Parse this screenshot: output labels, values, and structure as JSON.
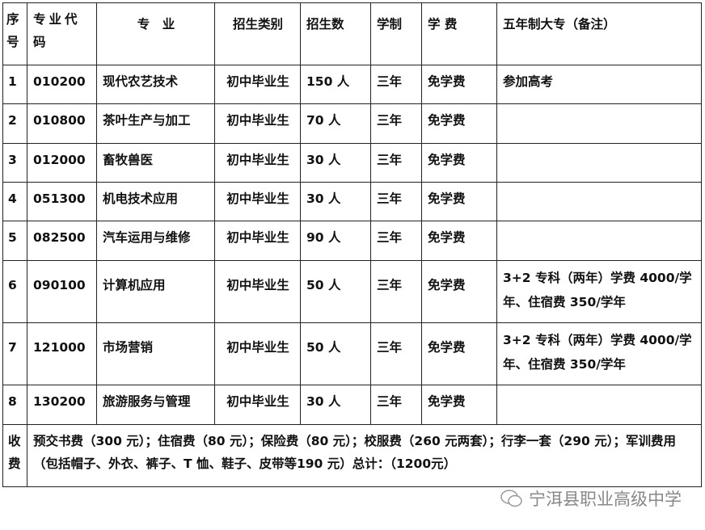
{
  "headers": {
    "seq": "序号",
    "code": "专业代码",
    "major": "专　业",
    "category": "招生类别",
    "count": "招生数",
    "duration": "学制",
    "tuition": "学 费",
    "note": "五年制大专（备注）"
  },
  "rows": [
    {
      "seq": "1",
      "code": "010200",
      "major": "现代农艺技术",
      "category": "初中毕业生",
      "count": "150 人",
      "duration": "三年",
      "tuition": "免学费",
      "note": "参加高考"
    },
    {
      "seq": "2",
      "code": "010800",
      "major": "茶叶生产与加工",
      "category": "初中毕业生",
      "count": "70 人",
      "duration": "三年",
      "tuition": "免学费",
      "note": ""
    },
    {
      "seq": "3",
      "code": "012000",
      "major": "畜牧兽医",
      "category": "初中毕业生",
      "count": "30 人",
      "duration": "三年",
      "tuition": "免学费",
      "note": ""
    },
    {
      "seq": "4",
      "code": "051300",
      "major": "机电技术应用",
      "category": "初中毕业生",
      "count": "30 人",
      "duration": "三年",
      "tuition": "免学费",
      "note": ""
    },
    {
      "seq": "5",
      "code": "082500",
      "major": "汽车运用与维修",
      "category": "初中毕业生",
      "count": "90 人",
      "duration": "三年",
      "tuition": "免学费",
      "note": ""
    },
    {
      "seq": "6",
      "code": "090100",
      "major": "计算机应用",
      "category": "初中毕业生",
      "count": "50 人",
      "duration": "三年",
      "tuition": "免学费",
      "note": "3+2 专科（两年）学费 4000/学年、住宿费 350/学年"
    },
    {
      "seq": "7",
      "code": "121000",
      "major": "市场营销",
      "category": "初中毕业生",
      "count": "50 人",
      "duration": "三年",
      "tuition": "免学费",
      "note": "3+2 专科（两年）学费 4000/学年、住宿费 350/学年"
    },
    {
      "seq": "8",
      "code": "130200",
      "major": "旅游服务与管理",
      "category": "初中毕业生",
      "count": "30 人",
      "duration": "三年",
      "tuition": "免学费",
      "note": ""
    }
  ],
  "fees": {
    "label": "收费",
    "text": "预交书费（300 元）；住宿费（80 元）；保险费（80 元）；校服费（260 元两套）；行李一套（290 元）；军训费用（包括帽子、外衣、裤子、T 恤、鞋子、皮带等190 元）总计：（1200元）"
  },
  "watermark": "宁洱县职业高级中学"
}
